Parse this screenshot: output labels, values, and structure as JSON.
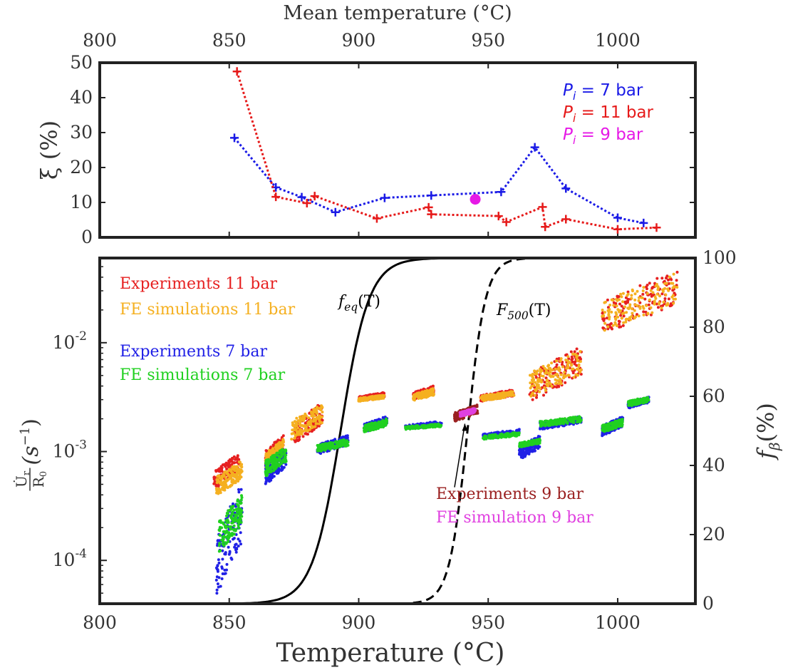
{
  "chart_data": [
    {
      "type": "line",
      "title": "",
      "xlabel": "Mean temperature (°C)",
      "ylabel": "ξ (%)",
      "xlim": [
        800,
        1030
      ],
      "ylim": [
        0,
        50
      ],
      "xticks": [
        "800",
        "850",
        "900",
        "950",
        "1000"
      ],
      "yticks": [
        "0",
        "10",
        "20",
        "30",
        "40",
        "50"
      ],
      "legend_position": "top-right",
      "series": [
        {
          "name": "P_i = 7 bar",
          "legend": {
            "sym": "P",
            "sub": "i",
            "rest": " = 7 bar"
          },
          "color": "#1a1ae6",
          "marker": "plus",
          "line": "dotted",
          "points": [
            [
              852,
              28.5
            ],
            [
              868,
              14.3
            ],
            [
              878,
              11.5
            ],
            [
              891,
              7.2
            ],
            [
              910,
              11.3
            ],
            [
              928,
              12.0
            ],
            [
              955,
              13.0
            ],
            [
              968,
              25.8
            ],
            [
              980,
              14.0
            ],
            [
              1000,
              5.6
            ],
            [
              1010,
              4.1
            ]
          ]
        },
        {
          "name": "P_i = 11 bar",
          "legend": {
            "sym": "P",
            "sub": "i",
            "rest": " = 11 bar"
          },
          "color": "#e61a1a",
          "marker": "plus",
          "line": "dotted",
          "points": [
            [
              853,
              47.5
            ],
            [
              868,
              11.6
            ],
            [
              880,
              9.8
            ],
            [
              883,
              11.8
            ],
            [
              907,
              5.4
            ],
            [
              927,
              8.6
            ],
            [
              928,
              6.6
            ],
            [
              954,
              6.1
            ],
            [
              957,
              4.4
            ],
            [
              971,
              8.7
            ],
            [
              972,
              3.0
            ],
            [
              980,
              5.2
            ],
            [
              1000,
              2.3
            ],
            [
              1015,
              2.8
            ]
          ]
        },
        {
          "name": "P_i = 9 bar",
          "legend": {
            "sym": "P",
            "sub": "i",
            "rest": " = 9 bar"
          },
          "color": "#e619e6",
          "marker": "circle",
          "line": "none",
          "points": [
            [
              945,
              10.9
            ]
          ]
        }
      ]
    },
    {
      "type": "scatter",
      "title": "",
      "xlabel": "Temperature (°C)",
      "ylabel": "U̇r/R0 (s⁻¹)",
      "ylabel_parts": {
        "num": "U̇",
        "num_sub": "r",
        "den": "R",
        "den_sub": "0",
        "rest": "(s",
        "exp": "−1",
        "close": ")"
      },
      "y2label": "fβ(%)",
      "y2label_parts": {
        "sym": "f",
        "sub": "β",
        "rest": "(%)"
      },
      "xlim": [
        800,
        1030
      ],
      "ylim_log": [
        4e-05,
        0.06
      ],
      "y2lim": [
        0,
        100
      ],
      "xticks": [
        "800",
        "850",
        "900",
        "950",
        "1000"
      ],
      "yticks_log": [
        {
          "base": "10",
          "exp": "-2"
        },
        {
          "base": "10",
          "exp": "-3"
        },
        {
          "base": "10",
          "exp": "-4"
        }
      ],
      "y2ticks": [
        "0",
        "20",
        "40",
        "60",
        "80",
        "100"
      ],
      "legend": [
        {
          "label": "Experiments 11 bar",
          "color": "#e62020"
        },
        {
          "label": "FE simulations 11 bar",
          "color": "#f5b020"
        },
        {
          "label": "Experiments 7 bar",
          "color": "#2020e6"
        },
        {
          "label": "FE simulations 7 bar",
          "color": "#20d020"
        }
      ],
      "legend_9bar": [
        {
          "label": "Experiments 9 bar",
          "color": "#9a2020"
        },
        {
          "label": "FE simulation 9 bar",
          "color": "#e040e0"
        }
      ],
      "curve_labels": [
        {
          "sym": "f",
          "sub": "eq",
          "rest": "(T)"
        },
        {
          "sym": "F",
          "sub": "500",
          "rest": "(T)"
        }
      ],
      "curves": [
        {
          "name": "f_eq(T)",
          "style": "solid",
          "axis": "right",
          "center": 893,
          "width": 22
        },
        {
          "name": "F_500(T)",
          "style": "dashed",
          "axis": "right",
          "center": 942,
          "width": 14
        }
      ],
      "clusters": [
        {
          "series": "Experiments 11 bar",
          "color": "#e62020",
          "x": [
            844,
            854
          ],
          "y": [
            0.00045,
            0.00095
          ]
        },
        {
          "series": "FE simulations 11 bar",
          "color": "#f5b020",
          "x": [
            845,
            855
          ],
          "y": [
            0.0004,
            0.00082
          ]
        },
        {
          "series": "Experiments 11 bar",
          "color": "#e62020",
          "x": [
            864,
            871
          ],
          "y": [
            0.00075,
            0.0014
          ]
        },
        {
          "series": "FE simulations 11 bar",
          "color": "#f5b020",
          "x": [
            864,
            871
          ],
          "y": [
            0.0007,
            0.0013
          ]
        },
        {
          "series": "Experiments 11 bar",
          "color": "#e62020",
          "x": [
            875,
            886
          ],
          "y": [
            0.0012,
            0.0028
          ]
        },
        {
          "series": "FE simulations 11 bar",
          "color": "#f5b020",
          "x": [
            874,
            886
          ],
          "y": [
            0.0013,
            0.0027
          ]
        },
        {
          "series": "Experiments 11 bar",
          "color": "#e62020",
          "x": [
            900,
            910
          ],
          "y": [
            0.0029,
            0.0035
          ]
        },
        {
          "series": "FE simulations 11 bar",
          "color": "#f5b020",
          "x": [
            900,
            910
          ],
          "y": [
            0.0029,
            0.0033
          ]
        },
        {
          "series": "Experiments 11 bar",
          "color": "#e62020",
          "x": [
            921,
            929
          ],
          "y": [
            0.003,
            0.004
          ]
        },
        {
          "series": "FE simulations 11 bar",
          "color": "#f5b020",
          "x": [
            921,
            929
          ],
          "y": [
            0.0029,
            0.0038
          ]
        },
        {
          "series": "Experiments 11 bar",
          "color": "#e62020",
          "x": [
            947,
            960
          ],
          "y": [
            0.0029,
            0.0037
          ]
        },
        {
          "series": "FE simulations 11 bar",
          "color": "#f5b020",
          "x": [
            947,
            960
          ],
          "y": [
            0.0029,
            0.0036
          ]
        },
        {
          "series": "Experiments 11 bar",
          "color": "#e62020",
          "x": [
            966,
            986
          ],
          "y": [
            0.0029,
            0.009
          ]
        },
        {
          "series": "FE simulations 11 bar",
          "color": "#f5b020",
          "x": [
            966,
            986
          ],
          "y": [
            0.0032,
            0.0085
          ]
        },
        {
          "series": "Experiments 11 bar",
          "color": "#e62020",
          "x": [
            994,
            1023
          ],
          "y": [
            0.012,
            0.045
          ]
        },
        {
          "series": "FE simulations 11 bar",
          "color": "#f5b020",
          "x": [
            994,
            1023
          ],
          "y": [
            0.013,
            0.043
          ]
        },
        {
          "series": "Experiments 7 bar",
          "color": "#2020e6",
          "x": [
            845,
            855
          ],
          "y": [
            5e-05,
            0.0005
          ]
        },
        {
          "series": "FE simulations 7 bar",
          "color": "#20d020",
          "x": [
            846,
            855
          ],
          "y": [
            0.00012,
            0.0004
          ]
        },
        {
          "series": "Experiments 7 bar",
          "color": "#2020e6",
          "x": [
            864,
            872
          ],
          "y": [
            0.0005,
            0.0011
          ]
        },
        {
          "series": "FE simulations 7 bar",
          "color": "#20d020",
          "x": [
            864,
            872
          ],
          "y": [
            0.0006,
            0.0011
          ]
        },
        {
          "series": "Experiments 7 bar",
          "color": "#2020e6",
          "x": [
            884,
            896
          ],
          "y": [
            0.00095,
            0.0014
          ]
        },
        {
          "series": "FE simulations 7 bar",
          "color": "#20d020",
          "x": [
            884,
            896
          ],
          "y": [
            0.001,
            0.0013
          ]
        },
        {
          "series": "Experiments 7 bar",
          "color": "#2020e6",
          "x": [
            902,
            911
          ],
          "y": [
            0.0015,
            0.0021
          ]
        },
        {
          "series": "FE simulations 7 bar",
          "color": "#20d020",
          "x": [
            902,
            911
          ],
          "y": [
            0.0015,
            0.002
          ]
        },
        {
          "series": "Experiments 7 bar",
          "color": "#2020e6",
          "x": [
            918,
            932
          ],
          "y": [
            0.0016,
            0.0019
          ]
        },
        {
          "series": "FE simulations 7 bar",
          "color": "#20d020",
          "x": [
            918,
            932
          ],
          "y": [
            0.0016,
            0.0018
          ]
        },
        {
          "series": "Experiments 7 bar",
          "color": "#2020e6",
          "x": [
            948,
            962
          ],
          "y": [
            0.0013,
            0.0016
          ]
        },
        {
          "series": "FE simulations 7 bar",
          "color": "#20d020",
          "x": [
            948,
            962
          ],
          "y": [
            0.0013,
            0.0015
          ]
        },
        {
          "series": "Experiments 7 bar",
          "color": "#2020e6",
          "x": [
            962,
            970
          ],
          "y": [
            0.00085,
            0.0014
          ]
        },
        {
          "series": "FE simulations 7 bar",
          "color": "#20d020",
          "x": [
            962,
            970
          ],
          "y": [
            0.0011,
            0.0013
          ]
        },
        {
          "series": "Experiments 7 bar",
          "color": "#2020e6",
          "x": [
            970,
            986
          ],
          "y": [
            0.0016,
            0.0021
          ]
        },
        {
          "series": "FE simulations 7 bar",
          "color": "#20d020",
          "x": [
            970,
            986
          ],
          "y": [
            0.0017,
            0.0021
          ]
        },
        {
          "series": "Experiments 7 bar",
          "color": "#2020e6",
          "x": [
            994,
            1002
          ],
          "y": [
            0.0014,
            0.0021
          ]
        },
        {
          "series": "FE simulations 7 bar",
          "color": "#20d020",
          "x": [
            994,
            1002
          ],
          "y": [
            0.0015,
            0.002
          ]
        },
        {
          "series": "Experiments 7 bar",
          "color": "#2020e6",
          "x": [
            1004,
            1012
          ],
          "y": [
            0.0025,
            0.0032
          ]
        },
        {
          "series": "FE simulations 7 bar",
          "color": "#20d020",
          "x": [
            1004,
            1012
          ],
          "y": [
            0.0026,
            0.0032
          ]
        },
        {
          "series": "Experiments 9 bar",
          "color": "#9a2020",
          "x": [
            937,
            946
          ],
          "y": [
            0.0019,
            0.0027
          ]
        },
        {
          "series": "FE simulation 9 bar",
          "color": "#e040e0",
          "x": [
            939,
            945
          ],
          "y": [
            0.0021,
            0.0025
          ]
        }
      ],
      "annotation_arrow": {
        "from": [
          937,
          0.00047
        ],
        "to": [
          941,
          0.0018
        ]
      }
    }
  ]
}
